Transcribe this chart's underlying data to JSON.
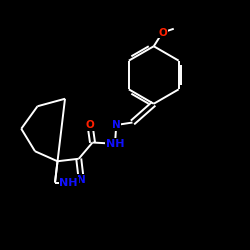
{
  "background_color": "#000000",
  "fig_bg": "#000000",
  "bond_color_white": "#ffffff",
  "atom_colors": {
    "N": "#1010ff",
    "O": "#ff2000"
  },
  "lw": 1.4,
  "dbo": 0.01,
  "fs": 7.5
}
